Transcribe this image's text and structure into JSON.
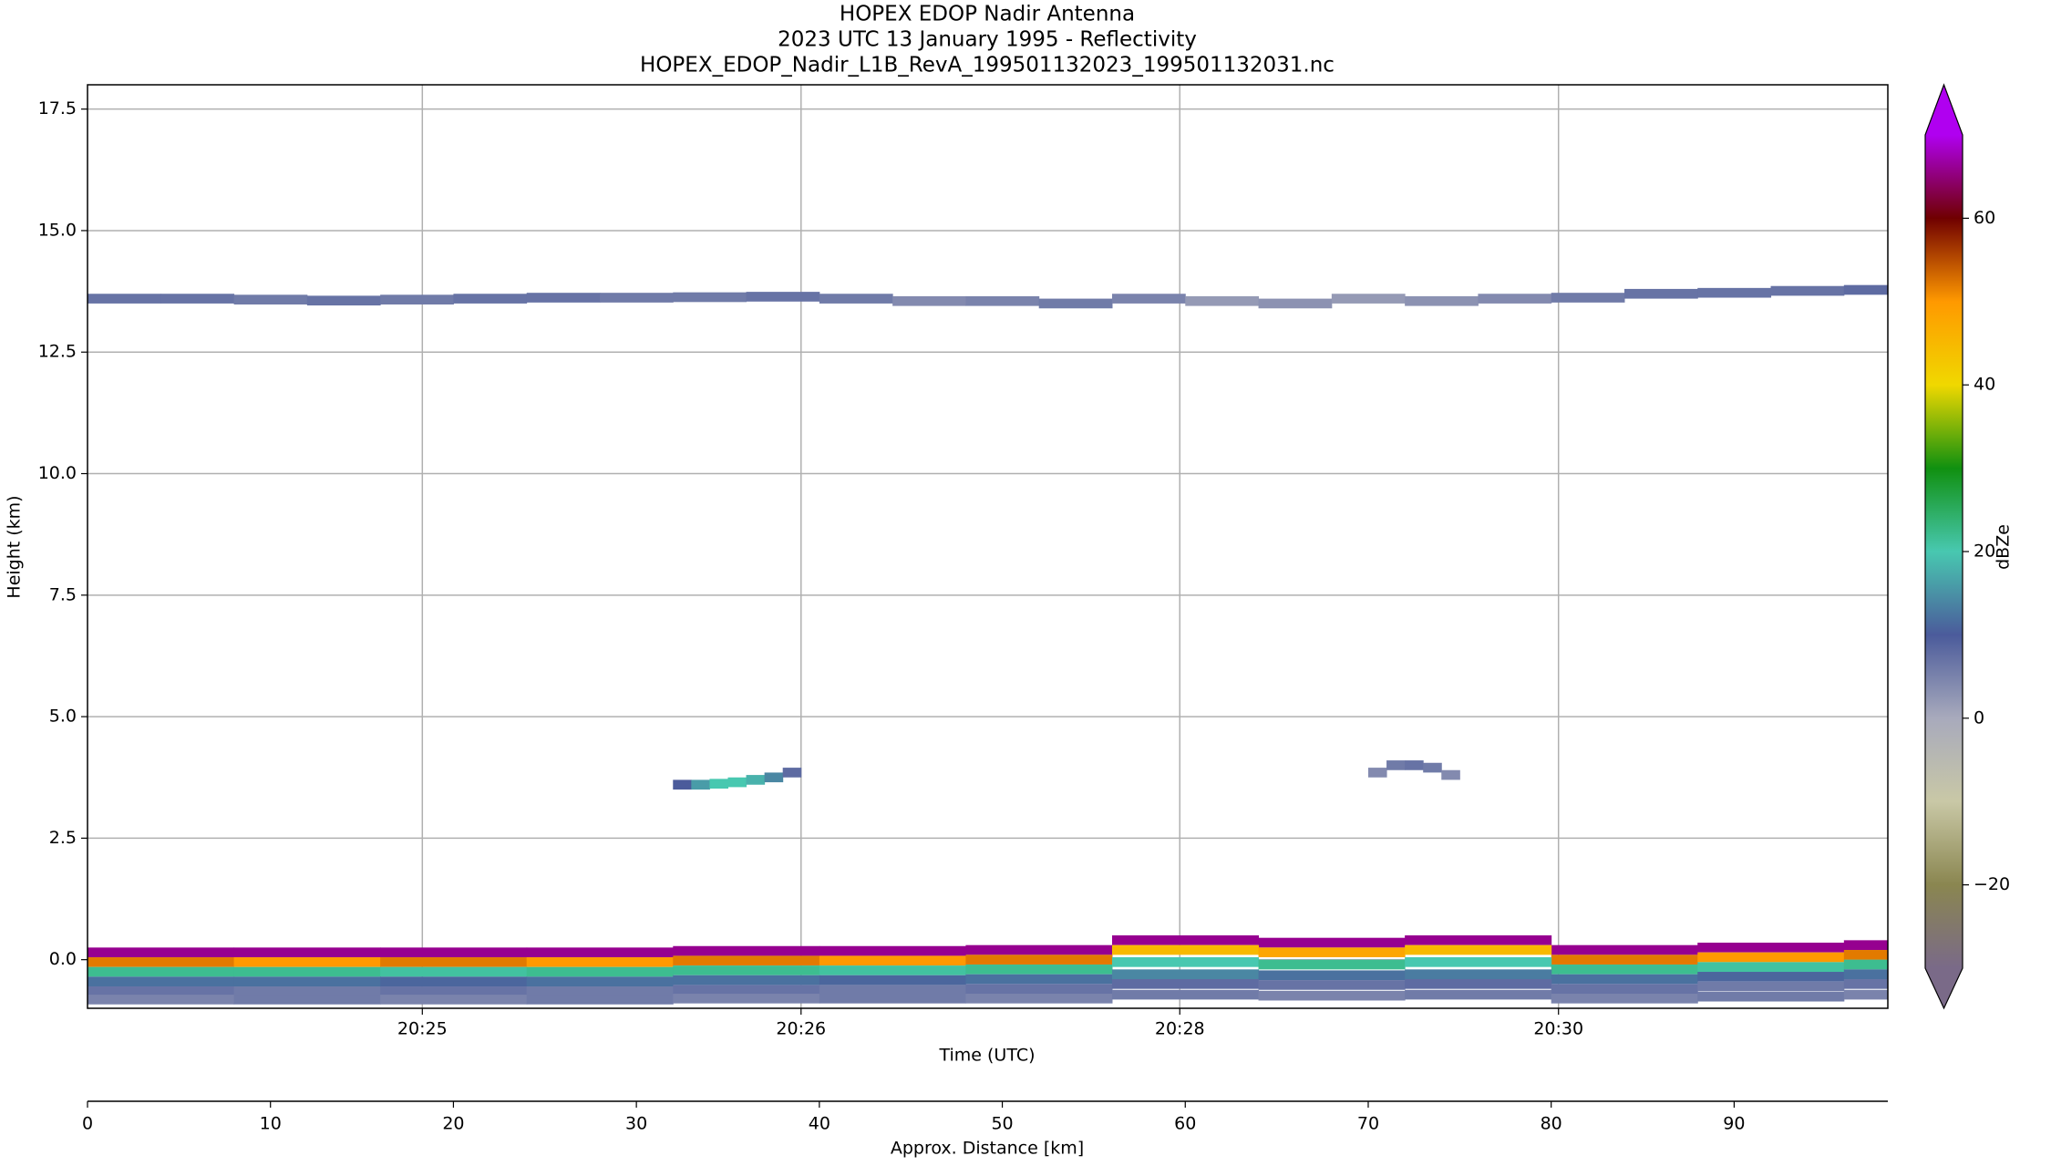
{
  "chart_data": {
    "type": "radar_curtain",
    "title": [
      "HOPEX EDOP Nadir Antenna",
      "2023 UTC 13 January 1995 - Reflectivity",
      "HOPEX_EDOP_Nadir_L1B_RevA_199501132023_199501132031.nc"
    ],
    "ylabel": "Height (km)",
    "xlabel": "Time (UTC)",
    "x2label": "Approx. Distance [km]",
    "colorbar_label": "dBZe",
    "xlim": [
      0,
      98.4
    ],
    "ylim": [
      -1,
      18
    ],
    "yticks": [
      {
        "value": 0,
        "label": "0.0"
      },
      2.5,
      {
        "value": 5,
        "label": "5.0"
      },
      7.5,
      {
        "value": 10,
        "label": "10.0"
      },
      12.5,
      {
        "value": 15,
        "label": "15.0"
      },
      17.5
    ],
    "xticks": [
      {
        "value": 18.3,
        "label": "20:25"
      },
      {
        "value": 39.0,
        "label": "20:26"
      },
      {
        "value": 59.7,
        "label": "20:28"
      },
      {
        "value": 80.4,
        "label": "20:30"
      }
    ],
    "x2ticks": [
      0,
      10,
      20,
      30,
      40,
      50,
      60,
      70,
      80,
      90
    ],
    "grid": true,
    "clim": [
      -30,
      70
    ],
    "cticks": [
      {
        "value": -20,
        "label": "−20"
      },
      0,
      20,
      40,
      60
    ],
    "colors": [
      "#7a6a88",
      "#8a8650",
      "#c9c8a6",
      "#a8aabc",
      "#4b5b9b",
      "#48c8b0",
      "#109010",
      "#f0d800",
      "#ff9900",
      "#700000",
      "#b000f0"
    ],
    "layers": [
      {
        "x": [
          0,
          4,
          8,
          12,
          16,
          20,
          24,
          28,
          32,
          36,
          40,
          44,
          48,
          52,
          56,
          60,
          64,
          68,
          72,
          76,
          80,
          84,
          88,
          92,
          96
        ],
        "y": [
          13.6,
          13.6,
          13.58,
          13.56,
          13.58,
          13.6,
          13.62,
          13.62,
          13.63,
          13.64,
          13.6,
          13.55,
          13.55,
          13.5,
          13.6,
          13.55,
          13.5,
          13.6,
          13.55,
          13.6,
          13.62,
          13.7,
          13.72,
          13.76,
          13.78
        ],
        "values": [
          7,
          7,
          6,
          7,
          6,
          7,
          7,
          6,
          6,
          7,
          6,
          4,
          5,
          6,
          5,
          2,
          3,
          2,
          3,
          4,
          6,
          7,
          7,
          7,
          8
        ]
      },
      {
        "x": [
          0,
          8,
          16,
          24,
          32,
          40,
          48,
          56,
          64,
          72,
          80,
          88,
          96
        ],
        "y": [
          0.15,
          0.15,
          0.15,
          0.15,
          0.18,
          0.18,
          0.2,
          0.4,
          0.35,
          0.4,
          0.2,
          0.25,
          0.3
        ],
        "values": [
          66,
          66,
          66,
          66,
          66,
          66,
          66,
          66,
          66,
          66,
          66,
          66,
          66
        ]
      },
      {
        "x": [
          0,
          8,
          16,
          24,
          32,
          40,
          48,
          56,
          64,
          72,
          80,
          88,
          96
        ],
        "y": [
          -0.05,
          -0.05,
          -0.05,
          -0.05,
          -0.02,
          -0.02,
          0.0,
          0.2,
          0.15,
          0.2,
          0.0,
          0.05,
          0.1
        ],
        "values": [
          52,
          50,
          52,
          50,
          52,
          50,
          52,
          45,
          48,
          45,
          52,
          50,
          52
        ]
      },
      {
        "x": [
          0,
          8,
          16,
          24,
          32,
          40,
          48,
          56,
          64,
          72,
          80,
          88,
          96
        ],
        "y": [
          -0.25,
          -0.25,
          -0.25,
          -0.25,
          -0.22,
          -0.22,
          -0.2,
          -0.05,
          -0.1,
          -0.05,
          -0.2,
          -0.15,
          -0.1
        ],
        "values": [
          22,
          22,
          21,
          22,
          22,
          21,
          22,
          20,
          22,
          20,
          22,
          21,
          22
        ]
      },
      {
        "x": [
          0,
          8,
          16,
          24,
          32,
          40,
          48,
          56,
          64,
          72,
          80,
          88,
          96
        ],
        "y": [
          -0.45,
          -0.45,
          -0.45,
          -0.45,
          -0.42,
          -0.42,
          -0.4,
          -0.3,
          -0.32,
          -0.3,
          -0.4,
          -0.35,
          -0.3
        ],
        "values": [
          12,
          12,
          11,
          12,
          12,
          11,
          12,
          14,
          12,
          13,
          12,
          11,
          12
        ]
      },
      {
        "x": [
          0,
          8,
          16,
          24,
          32,
          40,
          48,
          56,
          64,
          72,
          80,
          88,
          96
        ],
        "y": [
          -0.65,
          -0.65,
          -0.65,
          -0.65,
          -0.62,
          -0.62,
          -0.6,
          -0.5,
          -0.52,
          -0.5,
          -0.6,
          -0.55,
          -0.5
        ],
        "values": [
          7,
          6,
          7,
          6,
          7,
          6,
          7,
          8,
          7,
          8,
          7,
          6,
          7
        ]
      },
      {
        "x": [
          0,
          8,
          16,
          24,
          32,
          40,
          48,
          56,
          64,
          72,
          80,
          88,
          96
        ],
        "y": [
          -0.82,
          -0.82,
          -0.82,
          -0.82,
          -0.8,
          -0.8,
          -0.8,
          -0.72,
          -0.74,
          -0.72,
          -0.8,
          -0.76,
          -0.72
        ],
        "values": [
          5,
          6,
          5,
          6,
          5,
          6,
          5,
          6,
          5,
          6,
          5,
          6,
          5
        ]
      },
      {
        "x": [
          32,
          33,
          34,
          35,
          36,
          37,
          38
        ],
        "y": [
          3.6,
          3.6,
          3.62,
          3.65,
          3.7,
          3.75,
          3.85
        ],
        "values": [
          10,
          16,
          20,
          20,
          18,
          14,
          8
        ]
      },
      {
        "x": [
          70,
          71,
          72,
          73,
          74
        ],
        "y": [
          3.85,
          4.0,
          4.0,
          3.95,
          3.8
        ],
        "values": [
          4,
          6,
          7,
          6,
          4
        ]
      }
    ]
  }
}
